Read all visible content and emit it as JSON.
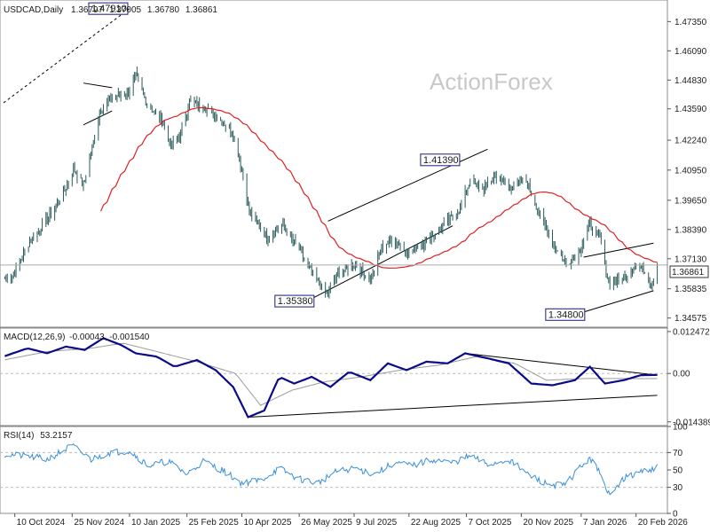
{
  "header": {
    "symbol_line": "USDCAD,Daily",
    "ohlc": [
      "1.36797",
      "1.37005",
      "1.36780",
      "1.36861"
    ]
  },
  "watermark": "ActionForex",
  "colors": {
    "price": "#2a5a5a",
    "ma": "#e02020",
    "macd": "#0b0b8a",
    "signal": "#9a9a9a",
    "rsi": "#3b8fd6",
    "grid": "#cccccc",
    "trend": "#000000"
  },
  "chart_data": [
    {
      "type": "line",
      "panel": "price",
      "y_ticks": [
        "1.47350",
        "1.46090",
        "1.44830",
        "1.43590",
        "1.42240",
        "1.40950",
        "1.39650",
        "1.38390",
        "1.37130",
        "1.35835",
        "1.34575"
      ],
      "ylim": [
        1.3418,
        1.4828
      ],
      "current_price": "1.36861",
      "current_price_value": 1.36861,
      "x_labels": [
        "10 Oct 2024",
        "25 Nov 2024",
        "10 Jan 2025",
        "25 Feb 2025",
        "10 Apr 2025",
        "26 May 2025",
        "9 Jul 2025",
        "22 Aug 2025",
        "7 Oct 2025",
        "20 Nov 2025",
        "7 Jan 2026",
        "20 Feb 2026"
      ],
      "annotations": [
        {
          "label": "1.47910",
          "date": "2025-01-10",
          "value": 1.4791
        },
        {
          "label": "1.35380",
          "date": "2025-06-04",
          "value": 1.3538
        },
        {
          "label": "1.41390",
          "date": "2025-10-03",
          "value": 1.4139
        },
        {
          "label": "1.34800",
          "date": "2026-01-07",
          "value": 1.348
        }
      ],
      "price_anchors": [
        [
          "2024-10-08",
          1.3635
        ],
        [
          "2024-10-22",
          1.379
        ],
        [
          "2024-11-05",
          1.388
        ],
        [
          "2024-11-19",
          1.401
        ],
        [
          "2024-11-26",
          1.41
        ],
        [
          "2024-12-04",
          1.403
        ],
        [
          "2024-12-18",
          1.436
        ],
        [
          "2024-12-27",
          1.4405
        ],
        [
          "2025-01-09",
          1.443
        ],
        [
          "2025-01-15",
          1.45
        ],
        [
          "2025-01-24",
          1.438
        ],
        [
          "2025-02-05",
          1.431
        ],
        [
          "2025-02-12",
          1.42
        ],
        [
          "2025-02-20",
          1.425
        ],
        [
          "2025-02-27",
          1.439
        ],
        [
          "2025-03-10",
          1.437
        ],
        [
          "2025-03-20",
          1.433
        ],
        [
          "2025-04-01",
          1.427
        ],
        [
          "2025-04-08",
          1.415
        ],
        [
          "2025-04-16",
          1.392
        ],
        [
          "2025-05-01",
          1.38
        ],
        [
          "2025-05-12",
          1.386
        ],
        [
          "2025-05-26",
          1.375
        ],
        [
          "2025-06-05",
          1.365
        ],
        [
          "2025-06-17",
          1.356
        ],
        [
          "2025-06-26",
          1.365
        ],
        [
          "2025-07-10",
          1.369
        ],
        [
          "2025-07-22",
          1.362
        ],
        [
          "2025-07-31",
          1.376
        ],
        [
          "2025-08-08",
          1.38
        ],
        [
          "2025-08-22",
          1.374
        ],
        [
          "2025-09-05",
          1.379
        ],
        [
          "2025-09-19",
          1.386
        ],
        [
          "2025-10-01",
          1.392
        ],
        [
          "2025-10-10",
          1.405
        ],
        [
          "2025-10-20",
          1.401
        ],
        [
          "2025-10-30",
          1.407
        ],
        [
          "2025-11-10",
          1.402
        ],
        [
          "2025-11-24",
          1.405
        ],
        [
          "2025-12-05",
          1.39
        ],
        [
          "2025-12-15",
          1.378
        ],
        [
          "2025-12-26",
          1.369
        ],
        [
          "2026-01-05",
          1.374
        ],
        [
          "2026-01-14",
          1.386
        ],
        [
          "2026-01-22",
          1.38
        ],
        [
          "2026-01-29",
          1.361
        ],
        [
          "2026-02-05",
          1.362
        ],
        [
          "2026-02-12",
          1.364
        ],
        [
          "2026-02-19",
          1.369
        ],
        [
          "2026-02-26",
          1.367
        ],
        [
          "2026-03-04",
          1.36
        ],
        [
          "2026-03-09",
          1.3686
        ]
      ],
      "trendlines": [
        {
          "style": "dashed",
          "from": [
            "2024-10-01",
            1.4385
          ],
          "to": [
            "2025-01-10",
            1.4791
          ]
        },
        {
          "style": "solid",
          "from": [
            "2025-06-18",
            1.3875
          ],
          "to": [
            "2025-10-24",
            1.4185
          ]
        },
        {
          "style": "solid",
          "from": [
            "2025-06-04",
            1.3538
          ],
          "to": [
            "2025-09-26",
            1.3855
          ]
        },
        {
          "style": "solid",
          "from": [
            "2026-01-09",
            1.372
          ],
          "to": [
            "2026-03-06",
            1.378
          ]
        },
        {
          "style": "solid",
          "from": [
            "2026-01-07",
            1.348
          ],
          "to": [
            "2026-03-06",
            1.3575
          ]
        },
        {
          "style": "solid",
          "from": [
            "2024-12-04",
            1.447
          ],
          "to": [
            "2024-12-27",
            1.445
          ]
        },
        {
          "style": "solid",
          "from": [
            "2024-12-04",
            1.429
          ],
          "to": [
            "2024-12-27",
            1.435
          ]
        }
      ]
    },
    {
      "type": "line",
      "panel": "macd",
      "title": "MACD(12,26,9)",
      "values_text": "-0.00043, -0.001540",
      "y_ticks": [
        "0.012472",
        "0.00",
        "-0.014389"
      ],
      "ylim": [
        -0.0155,
        0.0135
      ],
      "macd_anchors": [
        [
          "2024-10-01",
          0.005
        ],
        [
          "2024-10-20",
          0.0075
        ],
        [
          "2024-11-05",
          0.006
        ],
        [
          "2024-11-20",
          0.008
        ],
        [
          "2024-12-05",
          0.007
        ],
        [
          "2024-12-20",
          0.0105
        ],
        [
          "2025-01-03",
          0.0085
        ],
        [
          "2025-01-15",
          0.006
        ],
        [
          "2025-02-01",
          0.005
        ],
        [
          "2025-02-15",
          0.002
        ],
        [
          "2025-03-05",
          0.004
        ],
        [
          "2025-03-20",
          0.001
        ],
        [
          "2025-04-03",
          -0.004
        ],
        [
          "2025-04-15",
          -0.013
        ],
        [
          "2025-04-28",
          -0.011
        ],
        [
          "2025-05-10",
          -0.001
        ],
        [
          "2025-05-22",
          -0.003
        ],
        [
          "2025-06-05",
          -0.001
        ],
        [
          "2025-06-20",
          -0.004
        ],
        [
          "2025-07-05",
          0.0005
        ],
        [
          "2025-07-22",
          -0.002
        ],
        [
          "2025-08-05",
          0.003
        ],
        [
          "2025-08-20",
          0.001
        ],
        [
          "2025-09-05",
          0.0035
        ],
        [
          "2025-09-22",
          0.003
        ],
        [
          "2025-10-06",
          0.006
        ],
        [
          "2025-10-24",
          0.0045
        ],
        [
          "2025-11-10",
          0.003
        ],
        [
          "2025-11-28",
          -0.003
        ],
        [
          "2025-12-15",
          -0.0035
        ],
        [
          "2026-01-02",
          -0.002
        ],
        [
          "2026-01-14",
          0.002
        ],
        [
          "2026-01-26",
          -0.003
        ],
        [
          "2026-02-10",
          -0.002
        ],
        [
          "2026-02-24",
          -0.0005
        ],
        [
          "2026-03-09",
          -0.00043
        ]
      ],
      "signal_anchors": [
        [
          "2024-10-01",
          0.004
        ],
        [
          "2024-11-05",
          0.0065
        ],
        [
          "2024-12-10",
          0.0075
        ],
        [
          "2025-01-05",
          0.009
        ],
        [
          "2025-02-01",
          0.0065
        ],
        [
          "2025-03-05",
          0.0035
        ],
        [
          "2025-04-05",
          0.0
        ],
        [
          "2025-04-25",
          -0.0095
        ],
        [
          "2025-05-20",
          -0.005
        ],
        [
          "2025-06-15",
          -0.0025
        ],
        [
          "2025-07-15",
          -0.001
        ],
        [
          "2025-08-15",
          0.001
        ],
        [
          "2025-09-15",
          0.0025
        ],
        [
          "2025-10-15",
          0.005
        ],
        [
          "2025-11-15",
          0.003
        ],
        [
          "2025-12-10",
          -0.002
        ],
        [
          "2026-01-10",
          -0.0015
        ],
        [
          "2026-02-05",
          -0.0015
        ],
        [
          "2026-03-09",
          -0.00154
        ]
      ],
      "trendlines": [
        {
          "from": [
            "2025-04-15",
            -0.013
          ],
          "to": [
            "2026-03-09",
            -0.0065
          ]
        },
        {
          "from": [
            "2025-10-06",
            0.006
          ],
          "to": [
            "2026-03-09",
            -0.0005
          ]
        }
      ]
    },
    {
      "type": "line",
      "panel": "rsi",
      "title": "RSI(14)",
      "value_text": "53.2157",
      "y_ticks": [
        "100",
        "70",
        "50",
        "30",
        "0"
      ],
      "ylim": [
        0,
        100
      ],
      "rsi_anchors": [
        [
          "2024-10-01",
          68
        ],
        [
          "2024-10-20",
          66
        ],
        [
          "2024-11-05",
          62
        ],
        [
          "2024-11-25",
          78
        ],
        [
          "2024-12-10",
          62
        ],
        [
          "2024-12-25",
          70
        ],
        [
          "2025-01-10",
          72
        ],
        [
          "2025-01-25",
          55
        ],
        [
          "2025-02-10",
          60
        ],
        [
          "2025-02-25",
          45
        ],
        [
          "2025-03-10",
          60
        ],
        [
          "2025-03-25",
          50
        ],
        [
          "2025-04-10",
          35
        ],
        [
          "2025-04-25",
          38
        ],
        [
          "2025-05-10",
          52
        ],
        [
          "2025-05-25",
          40
        ],
        [
          "2025-06-10",
          35
        ],
        [
          "2025-06-25",
          48
        ],
        [
          "2025-07-10",
          52
        ],
        [
          "2025-07-25",
          45
        ],
        [
          "2025-08-10",
          58
        ],
        [
          "2025-08-25",
          55
        ],
        [
          "2025-09-10",
          62
        ],
        [
          "2025-09-25",
          58
        ],
        [
          "2025-10-10",
          66
        ],
        [
          "2025-10-25",
          56
        ],
        [
          "2025-11-10",
          62
        ],
        [
          "2025-11-25",
          45
        ],
        [
          "2025-12-10",
          34
        ],
        [
          "2025-12-25",
          32
        ],
        [
          "2026-01-07",
          55
        ],
        [
          "2026-01-17",
          64
        ],
        [
          "2026-01-28",
          22
        ],
        [
          "2026-02-10",
          40
        ],
        [
          "2026-02-24",
          48
        ],
        [
          "2026-03-09",
          53.2157
        ]
      ]
    }
  ]
}
